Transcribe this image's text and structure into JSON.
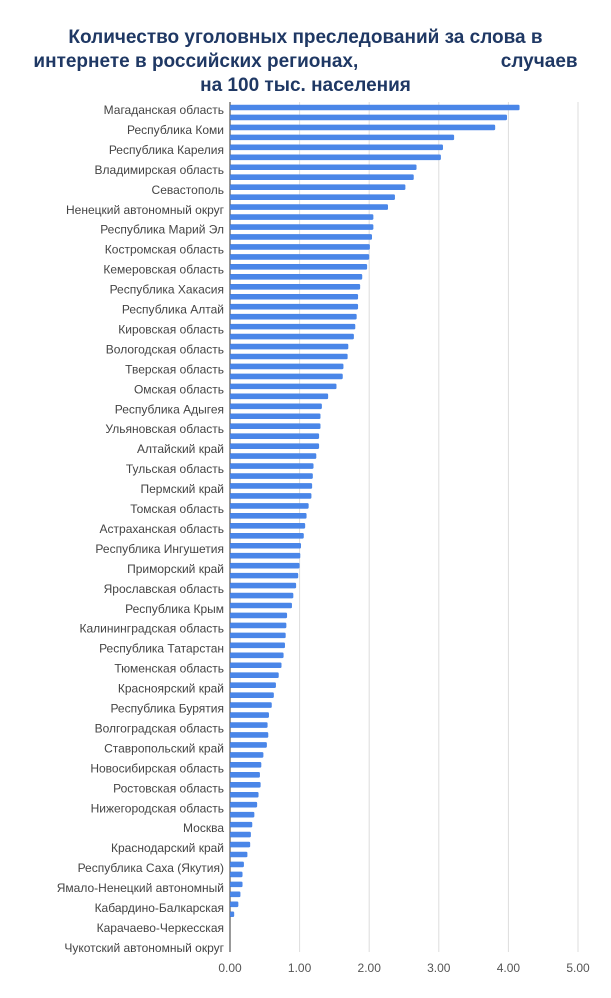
{
  "chart_data": {
    "type": "bar",
    "orientation": "horizontal",
    "title_lines": [
      "Количество уголовных преследований за слова в",
      "интернете в российских регионах,                           случаев",
      "на 100 тыс. населения"
    ],
    "bar_color": "#4a86e8",
    "title_color": "#1f3864",
    "grid": true,
    "xlim": [
      0,
      5
    ],
    "xticks": [
      "0.00",
      "1.00",
      "2.00",
      "3.00",
      "4.00",
      "5.00"
    ],
    "xtick_values": [
      0,
      1,
      2,
      3,
      4,
      5
    ],
    "labeled_categories": [
      "Магаданская область",
      "Республика Коми",
      "Республика Карелия",
      "Владимирская область",
      "Севастополь",
      "Ненецкий автономный округ",
      "Республика Марий Эл",
      "Костромская область",
      "Кемеровская область",
      "Республика Хакасия",
      "Республика Алтай",
      "Кировская область",
      "Вологодская область",
      "Тверская область",
      "Омская область",
      "Республика Адыгея",
      "Ульяновская область",
      "Алтайский край",
      "Тульская область",
      "Пермский край",
      "Томская область",
      "Астраханская область",
      "Республика Ингушетия",
      "Приморский край",
      "Ярославская область",
      "Республика Крым",
      "Калининградская область",
      "Республика Татарстан",
      "Тюменская область",
      "Красноярский край",
      "Республика Бурятия",
      "Волгоградская область",
      "Ставропольский край",
      "Новосибирская область",
      "Ростовская область",
      "Нижегородская область",
      "Москва",
      "Краснодарский край",
      "Республика Саха (Якутия)",
      "Ямало-Ненецкий автономный",
      "Кабардино-Балкарская",
      "Карачаево-Черкесская",
      "Чукотский автономный округ"
    ],
    "values": [
      4.16,
      3.98,
      3.81,
      3.22,
      3.06,
      3.03,
      2.68,
      2.64,
      2.52,
      2.37,
      2.27,
      2.06,
      2.06,
      2.04,
      2.01,
      2.0,
      1.97,
      1.9,
      1.87,
      1.84,
      1.84,
      1.82,
      1.8,
      1.78,
      1.7,
      1.69,
      1.63,
      1.62,
      1.53,
      1.41,
      1.32,
      1.3,
      1.3,
      1.28,
      1.28,
      1.24,
      1.2,
      1.19,
      1.18,
      1.17,
      1.13,
      1.1,
      1.08,
      1.06,
      1.02,
      1.01,
      1.0,
      0.98,
      0.95,
      0.91,
      0.89,
      0.82,
      0.81,
      0.8,
      0.79,
      0.77,
      0.74,
      0.7,
      0.66,
      0.63,
      0.6,
      0.56,
      0.54,
      0.55,
      0.53,
      0.48,
      0.45,
      0.43,
      0.44,
      0.41,
      0.39,
      0.35,
      0.32,
      0.3,
      0.29,
      0.25,
      0.2,
      0.18,
      0.18,
      0.15,
      0.12,
      0.06,
      0.0,
      0.0
    ]
  }
}
